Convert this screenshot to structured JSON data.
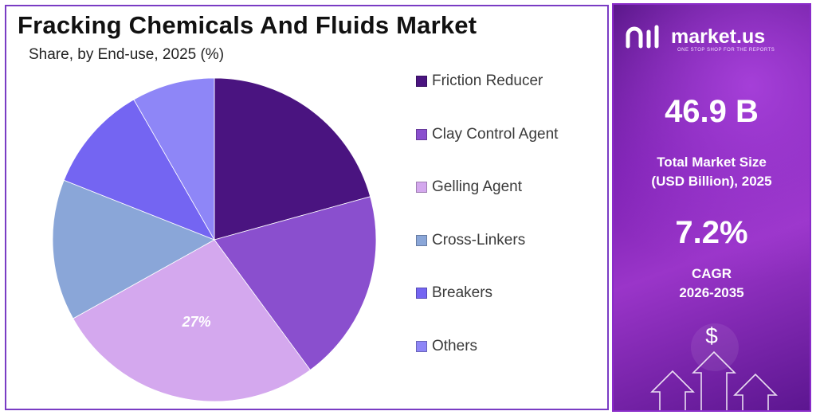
{
  "title": "Fracking Chemicals And Fluids Market",
  "subtitle": "Share, by End-use, 2025 (%)",
  "chart_data": {
    "type": "pie",
    "title": "Fracking Chemicals And Fluids Market",
    "subtitle": "Share, by End-use, 2025 (%)",
    "start_angle_deg": 0,
    "direction": "clockwise",
    "slices": [
      {
        "label": "Friction Reducer",
        "value": 20.7,
        "color": "#4a1480"
      },
      {
        "label": "Clay Control Agent",
        "value": 19.2,
        "color": "#8a4fce"
      },
      {
        "label": "Gelling Agent",
        "value": 27,
        "color": "#d4a8ee",
        "data_label": "27%"
      },
      {
        "label": "Cross-Linkers",
        "value": 14.1,
        "color": "#8aa6d8"
      },
      {
        "label": "Breakers",
        "value": 10.7,
        "color": "#7465f2"
      },
      {
        "label": "Others",
        "value": 8.3,
        "color": "#8e86f7"
      }
    ],
    "legend_position": "right"
  },
  "side_panel": {
    "brand": "market.us",
    "tagline": "ONE STOP SHOP FOR THE REPORTS",
    "market_size": "46.9 B",
    "market_size_caption_line1": "Total Market Size",
    "market_size_caption_line2": "(USD Billion), 2025",
    "cagr": "7.2%",
    "cagr_caption_line1": "CAGR",
    "cagr_caption_line2": "2026-2035",
    "dollar_symbol": "$"
  },
  "colors": {
    "border": "#7a3cc4",
    "panel_dark": "#4b0f7a",
    "panel_light": "#9a35c9"
  }
}
